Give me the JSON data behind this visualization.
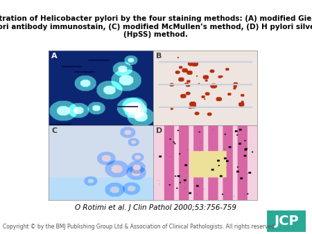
{
  "title": "Demonstration of Helicobacter pylori by the four staining methods: (A) modified Giemsa, (B)\nanti-H pylori antibody immunostain, (C) modified McMullen’s method, (D) H pylori silver staining\n(HpSS) method.",
  "citation": "O Rotimi et al. J Clin Pathol 2000;53:756-759",
  "copyright": "Copyright © by the BMJ Publishing Group Ltd & Association of Clinical Pathologists. All rights reserved.",
  "jcp_color": "#2aaa96",
  "jcp_text": "JCP",
  "background_color": "#ffffff",
  "title_fontsize": 7.5,
  "citation_fontsize": 7.5,
  "copyright_fontsize": 5.5
}
